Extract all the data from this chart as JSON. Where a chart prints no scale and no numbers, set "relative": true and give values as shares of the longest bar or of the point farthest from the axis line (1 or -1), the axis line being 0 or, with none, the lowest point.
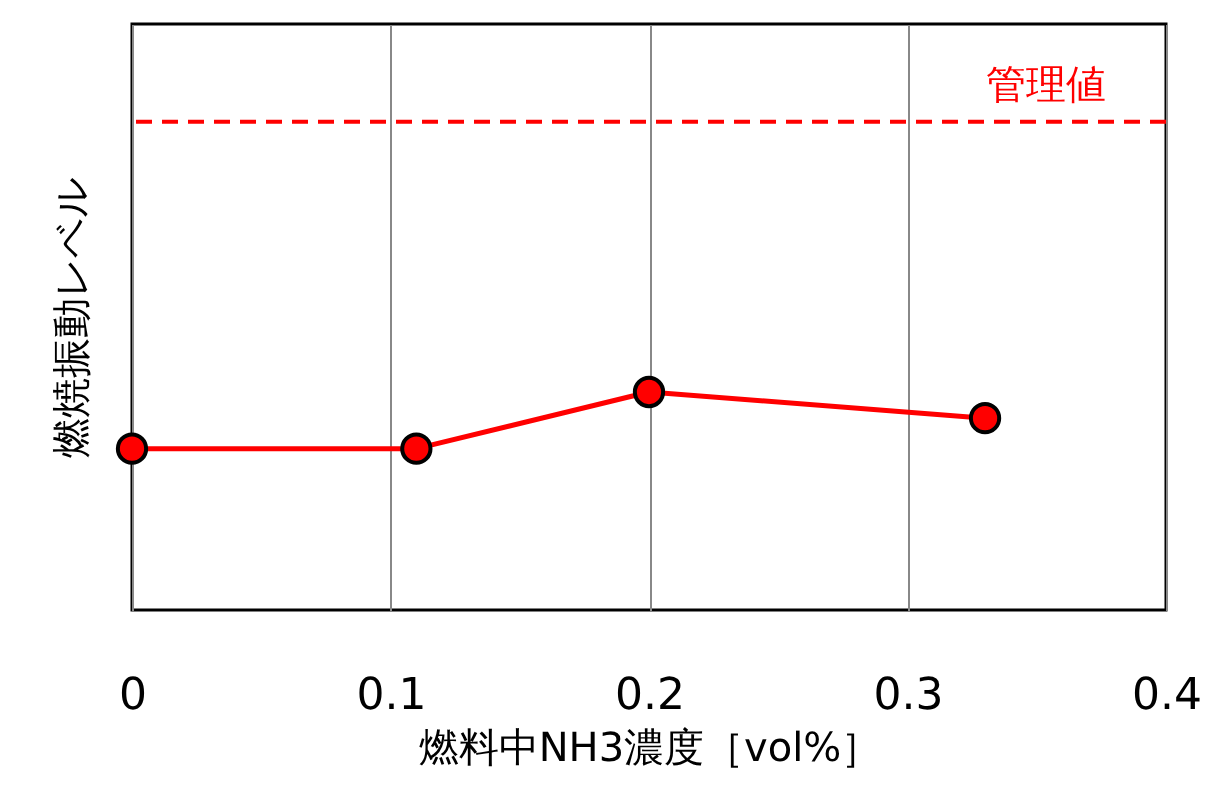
{
  "chart_data": {
    "type": "line",
    "xlabel": "燃料中NH3濃度［vol%］",
    "ylabel": "燃焼振動レベル",
    "relative": true,
    "x": [
      0,
      0.11,
      0.2,
      0.33
    ],
    "series": [
      {
        "color": "#ff0000",
        "values": [
          0.74,
          0.74,
          1,
          0.88
        ]
      }
    ],
    "xlim": [
      0,
      0.4
    ],
    "xticks": [
      0,
      0.1,
      0.2,
      0.3,
      0.4
    ],
    "ref_lines": [
      {
        "axis": "y",
        "value": 2.24,
        "label": "管理値",
        "color": "#ff0000",
        "line_style": "dashed"
      }
    ],
    "grid": "x",
    "marker": "circle",
    "line_style": "solid",
    "tick_labels": "x"
  }
}
